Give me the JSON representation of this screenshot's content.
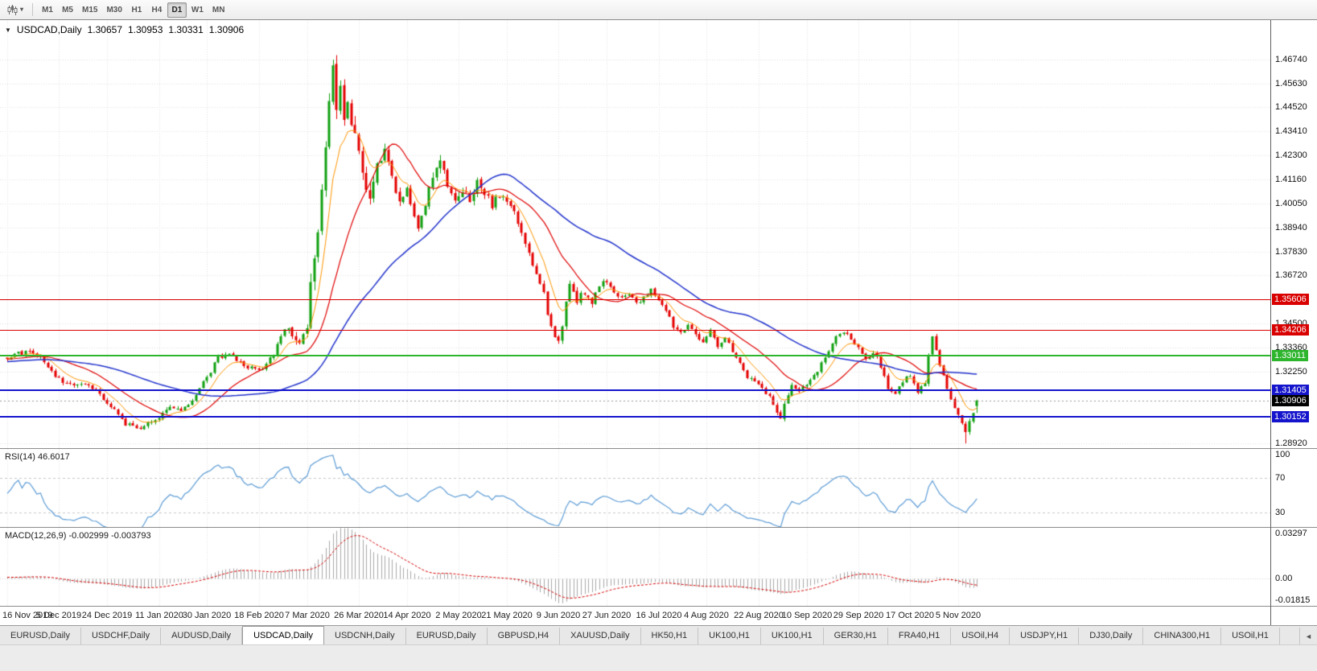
{
  "toolbar": {
    "chart_type_button": {
      "icon": "candlestick-chart-icon",
      "caret": "▾"
    },
    "timeframes": [
      "M1",
      "M5",
      "M15",
      "M30",
      "H1",
      "H4",
      "D1",
      "W1",
      "MN"
    ],
    "active_timeframe": "D1"
  },
  "chart": {
    "menu_glyph": "▼",
    "title": {
      "symbol": "USDCAD,Daily",
      "open": "1.30657",
      "high": "1.30953",
      "low": "1.30331",
      "close": "1.30906"
    }
  },
  "indicators": {
    "rsi": {
      "label": "RSI(14) 46.6017",
      "axis_labels": [
        "100",
        "70",
        "30"
      ]
    },
    "macd": {
      "label": "MACD(12,26,9) -0.002999 -0.003793",
      "axis_top": "0.03297",
      "axis_zero": "0.00",
      "axis_bottom": "-0.01815"
    }
  },
  "tab_bar": {
    "scroll_left_glyph": "◄",
    "active_index": 3,
    "tabs": [
      "EURUSD,Daily",
      "USDCHF,Daily",
      "AUDUSD,Daily",
      "USDCAD,Daily",
      "USDCNH,Daily",
      "EURUSD,Daily",
      "GBPUSD,H4",
      "XAUUSD,Daily",
      "HK50,H1",
      "UK100,H1",
      "UK100,H1",
      "GER30,H1",
      "FRA40,H1",
      "USOil,H4",
      "USDJPY,H1",
      "DJ30,Daily",
      "CHINA300,H1",
      "USOil,H1"
    ]
  },
  "chart_data": {
    "type": "candlestick",
    "symbol": "USDCAD",
    "timeframe": "Daily",
    "current_ohlc": {
      "open": 1.30657,
      "high": 1.30953,
      "low": 1.30331,
      "close": 1.30906
    },
    "ylim": [
      1.287,
      1.4857
    ],
    "price_axis_labels": [
      "1.46740",
      "1.45630",
      "1.44520",
      "1.43410",
      "1.42300",
      "1.41160",
      "1.40050",
      "1.38940",
      "1.37830",
      "1.36720",
      "1.34500",
      "1.33360",
      "1.32250",
      "1.28920"
    ],
    "date_labels": [
      "16 Nov 2019",
      "5 Dec 2019",
      "24 Dec 2019",
      "11 Jan 2020",
      "30 Jan 2020",
      "18 Feb 2020",
      "7 Mar 2020",
      "26 Mar 2020",
      "14 Apr 2020",
      "2 May 2020",
      "21 May 2020",
      "9 Jun 2020",
      "27 Jun 2020",
      "16 Jul 2020",
      "4 Aug 2020",
      "22 Aug 2020",
      "10 Sep 2020",
      "29 Sep 2020",
      "17 Oct 2020",
      "5 Nov 2020"
    ],
    "horizontal_levels": [
      {
        "price": 1.35606,
        "label": "1.35606",
        "color": "#d90000",
        "thickness": 1
      },
      {
        "price": 1.34206,
        "label": "1.34206",
        "color": "#d90000",
        "thickness": 1
      },
      {
        "price": 1.33011,
        "label": "1.33011",
        "color": "#2db52d",
        "thickness": 2
      },
      {
        "price": 1.31405,
        "label": "1.31405",
        "color": "#1414cc",
        "thickness": 2
      },
      {
        "price": 1.30152,
        "label": "1.30152",
        "color": "#1414cc",
        "thickness": 2
      }
    ],
    "current_price_marker": {
      "price": 1.30906,
      "label": "1.30906",
      "color": "#000000"
    },
    "moving_averages": [
      {
        "name": "fast",
        "type": "ema",
        "period": 8,
        "color": "#ff9500"
      },
      {
        "name": "medium",
        "type": "sma",
        "period": 20,
        "color": "#e00000"
      },
      {
        "name": "slow",
        "type": "sma",
        "period": 50,
        "color": "#2233cc"
      }
    ],
    "candle_colors": {
      "bull": "#0fa00f",
      "bear": "#e50000"
    },
    "rsi": {
      "period": 14,
      "current": 46.6017,
      "levels": [
        70,
        30
      ],
      "color": "#5b9bd5",
      "range": [
        13,
        103
      ]
    },
    "macd": {
      "fast": 12,
      "slow": 26,
      "signal": 9,
      "current_macd": -0.002999,
      "current_signal": -0.003793,
      "range": [
        -0.01815,
        0.03297
      ],
      "histogram_color": "#a8a8a8",
      "signal_color": "#d40000"
    },
    "visible_candles": 263,
    "close_anchors": [
      [
        -55,
        1.324
      ],
      [
        -40,
        1.326
      ],
      [
        0,
        1.329
      ],
      [
        5,
        1.332
      ],
      [
        9,
        1.3295
      ],
      [
        13,
        1.3195
      ],
      [
        17,
        1.3165
      ],
      [
        21,
        1.3175
      ],
      [
        25,
        1.312
      ],
      [
        29,
        1.3045
      ],
      [
        32,
        1.2985
      ],
      [
        35,
        1.2955
      ],
      [
        38,
        1.298
      ],
      [
        41,
        1.301
      ],
      [
        44,
        1.306
      ],
      [
        47,
        1.304
      ],
      [
        50,
        1.309
      ],
      [
        54,
        1.32
      ],
      [
        57,
        1.329
      ],
      [
        60,
        1.3305
      ],
      [
        63,
        1.3265
      ],
      [
        66,
        1.324
      ],
      [
        69,
        1.3225
      ],
      [
        72,
        1.331
      ],
      [
        75,
        1.343
      ],
      [
        77,
        1.3385
      ],
      [
        79,
        1.3345
      ],
      [
        81,
        1.342
      ],
      [
        82,
        1.366
      ],
      [
        84,
        1.39
      ],
      [
        86,
        1.43
      ],
      [
        88,
        1.467
      ],
      [
        89,
        1.444
      ],
      [
        90,
        1.456
      ],
      [
        91,
        1.44
      ],
      [
        92,
        1.448
      ],
      [
        94,
        1.433
      ],
      [
        96,
        1.415
      ],
      [
        98,
        1.405
      ],
      [
        100,
        1.418
      ],
      [
        102,
        1.426
      ],
      [
        104,
        1.413
      ],
      [
        106,
        1.402
      ],
      [
        108,
        1.409
      ],
      [
        110,
        1.395
      ],
      [
        111,
        1.389
      ],
      [
        113,
        1.4
      ],
      [
        115,
        1.412
      ],
      [
        117,
        1.421
      ],
      [
        119,
        1.409
      ],
      [
        121,
        1.4
      ],
      [
        123,
        1.406
      ],
      [
        125,
        1.403
      ],
      [
        127,
        1.411
      ],
      [
        129,
        1.406
      ],
      [
        131,
        1.399
      ],
      [
        133,
        1.405
      ],
      [
        135,
        1.4
      ],
      [
        137,
        1.396
      ],
      [
        139,
        1.387
      ],
      [
        141,
        1.378
      ],
      [
        143,
        1.368
      ],
      [
        145,
        1.358
      ],
      [
        147,
        1.343
      ],
      [
        149,
        1.336
      ],
      [
        150,
        1.342
      ],
      [
        151,
        1.355
      ],
      [
        152,
        1.364
      ],
      [
        154,
        1.356
      ],
      [
        156,
        1.36
      ],
      [
        158,
        1.355
      ],
      [
        160,
        1.362
      ],
      [
        162,
        1.365
      ],
      [
        164,
        1.36
      ],
      [
        166,
        1.356
      ],
      [
        168,
        1.359
      ],
      [
        170,
        1.354
      ],
      [
        172,
        1.357
      ],
      [
        174,
        1.361
      ],
      [
        176,
        1.356
      ],
      [
        178,
        1.351
      ],
      [
        180,
        1.344
      ],
      [
        182,
        1.341
      ],
      [
        184,
        1.345
      ],
      [
        186,
        1.339
      ],
      [
        188,
        1.336
      ],
      [
        190,
        1.341
      ],
      [
        192,
        1.334
      ],
      [
        194,
        1.339
      ],
      [
        196,
        1.331
      ],
      [
        198,
        1.326
      ],
      [
        200,
        1.32
      ],
      [
        202,
        1.318
      ],
      [
        204,
        1.315
      ],
      [
        206,
        1.311
      ],
      [
        208,
        1.304
      ],
      [
        209,
        1.3005
      ],
      [
        210,
        1.308
      ],
      [
        212,
        1.316
      ],
      [
        214,
        1.313
      ],
      [
        216,
        1.316
      ],
      [
        218,
        1.32
      ],
      [
        220,
        1.326
      ],
      [
        222,
        1.331
      ],
      [
        224,
        1.339
      ],
      [
        226,
        1.341
      ],
      [
        228,
        1.337
      ],
      [
        230,
        1.333
      ],
      [
        232,
        1.328
      ],
      [
        234,
        1.332
      ],
      [
        236,
        1.325
      ],
      [
        238,
        1.315
      ],
      [
        240,
        1.313
      ],
      [
        242,
        1.318
      ],
      [
        244,
        1.321
      ],
      [
        246,
        1.313
      ],
      [
        248,
        1.318
      ],
      [
        249,
        1.33
      ],
      [
        250,
        1.339
      ],
      [
        251,
        1.333
      ],
      [
        252,
        1.326
      ],
      [
        253,
        1.32
      ],
      [
        254,
        1.314
      ],
      [
        255,
        1.311
      ],
      [
        256,
        1.307
      ],
      [
        257,
        1.303
      ],
      [
        258,
        1.299
      ],
      [
        259,
        1.294
      ],
      [
        260,
        1.301
      ],
      [
        261,
        1.304
      ],
      [
        262,
        1.309
      ]
    ]
  }
}
